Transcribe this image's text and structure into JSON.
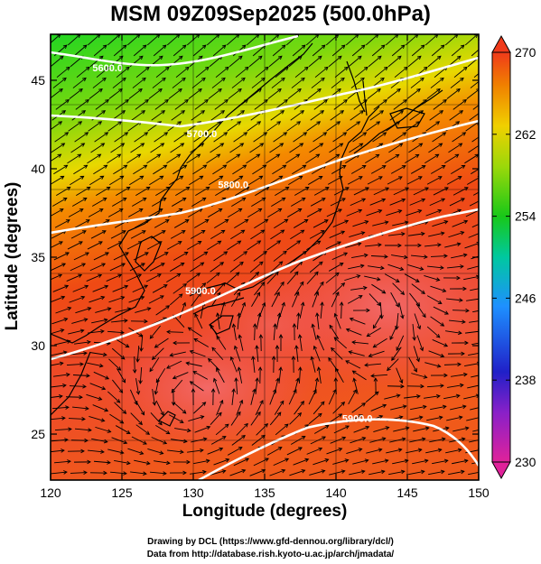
{
  "title": "MSM 09Z09Sep2025 (500.0hPa)",
  "axes": {
    "xlabel": "Longitude (degrees)",
    "ylabel": "Latitude  (degrees)",
    "xticks": [
      "120",
      "125",
      "130",
      "135",
      "140",
      "145",
      "150"
    ],
    "yticks": [
      "25",
      "30",
      "35",
      "40",
      "45"
    ],
    "xlim": [
      120,
      150
    ],
    "ylim": [
      22.4,
      47.6
    ]
  },
  "colorbar": {
    "labels": [
      "270",
      "262",
      "254",
      "246",
      "238",
      "230"
    ],
    "range": [
      230,
      270
    ],
    "colors": [
      "#e0229a",
      "#2020c8",
      "#1e90ff",
      "#00c8a0",
      "#18c818",
      "#9ad80a",
      "#f0d000",
      "#f08000",
      "#f03a1a"
    ]
  },
  "contours": [
    {
      "label": "5600.0",
      "lon": 124,
      "lat": 45.7
    },
    {
      "label": "5700.0",
      "lon": 130.6,
      "lat": 42.0
    },
    {
      "label": "5800.0",
      "lon": 132.8,
      "lat": 39.1
    },
    {
      "label": "5900.0",
      "lon": 130.5,
      "lat": 33.1
    },
    {
      "label": "5900.0",
      "lon": 141.5,
      "lat": 25.9
    }
  ],
  "footer": {
    "line1": "Drawing by DCL (https://www.gfd-dennou.org/library/dcl/)",
    "line2": "Data from http://database.rish.kyoto-u.ac.jp/arch/jmadata/"
  }
}
